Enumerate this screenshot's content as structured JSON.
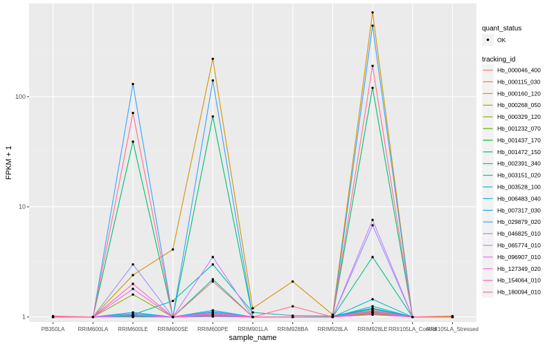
{
  "chart_data": {
    "type": "line",
    "xlabel": "sample_name",
    "ylabel": "FPKM + 1",
    "y_scale": "log10",
    "ylim": [
      0.9,
      700
    ],
    "y_ticks": [
      {
        "value": 1,
        "label": "1"
      },
      {
        "value": 10,
        "label": "10"
      },
      {
        "value": 100,
        "label": "100"
      }
    ],
    "categories": [
      "PB350LA",
      "RRIM600LA",
      "RRIM600LE",
      "RRIM600SE",
      "RRIM600PE",
      "RRIM901LA",
      "RRIM928BA",
      "RRIM928LA",
      "RRIM928LE",
      "RRII105LA_Control",
      "RRII105LA_Stressed"
    ],
    "grid": true,
    "legend_position": "right",
    "point_legend": {
      "title": "quant_status",
      "label": "OK"
    },
    "line_legend_title": "tracking_id",
    "series": [
      {
        "name": "Hb_000046_400",
        "color": "#F8766D",
        "values": [
          1.0,
          1.0,
          1.03,
          1.0,
          1.02,
          1.0,
          1.0,
          1.0,
          1.15,
          1.0,
          1.0
        ]
      },
      {
        "name": "Hb_000115_030",
        "color": "#E7851E",
        "values": [
          1.0,
          1.0,
          1.01,
          1.0,
          1.01,
          1.0,
          1.0,
          1.0,
          1.08,
          1.0,
          1.0
        ]
      },
      {
        "name": "Hb_000160_120",
        "color": "#D09400",
        "values": [
          1.0,
          1.0,
          2.4,
          4.1,
          220,
          1.2,
          2.1,
          1.05,
          580,
          1.0,
          1.02
        ]
      },
      {
        "name": "Hb_000268_050",
        "color": "#B2A100",
        "values": [
          1.0,
          1.0,
          1.02,
          1.0,
          1.02,
          1.0,
          1.0,
          1.0,
          1.1,
          1.0,
          1.0
        ]
      },
      {
        "name": "Hb_000329_120",
        "color": "#8BAB00",
        "values": [
          1.0,
          1.0,
          1.6,
          1.0,
          1.1,
          1.0,
          1.0,
          1.0,
          1.2,
          1.0,
          1.0
        ]
      },
      {
        "name": "Hb_001232_070",
        "color": "#55B400",
        "values": [
          1.0,
          1.0,
          1.04,
          1.0,
          1.05,
          1.0,
          1.0,
          1.0,
          1.12,
          1.0,
          1.0
        ]
      },
      {
        "name": "Hb_001437_170",
        "color": "#00BA38",
        "values": [
          1.0,
          1.0,
          1.02,
          1.0,
          1.02,
          1.0,
          1.0,
          1.0,
          1.06,
          1.0,
          1.0
        ]
      },
      {
        "name": "Hb_001472_150",
        "color": "#00BE6C",
        "values": [
          1.0,
          1.0,
          39,
          1.0,
          66,
          1.0,
          1.0,
          1.0,
          120,
          1.0,
          1.0
        ]
      },
      {
        "name": "Hb_002391_340",
        "color": "#00C08E",
        "values": [
          1.0,
          1.0,
          1.03,
          1.0,
          2.2,
          1.0,
          1.0,
          1.0,
          3.5,
          1.0,
          1.0
        ]
      },
      {
        "name": "Hb_003151_020",
        "color": "#00C0AB",
        "values": [
          1.0,
          1.0,
          1.05,
          1.4,
          3.0,
          1.1,
          1.03,
          1.02,
          1.2,
          1.0,
          1.0
        ]
      },
      {
        "name": "Hb_003528_100",
        "color": "#00BDC4",
        "values": [
          1.0,
          1.0,
          1.04,
          1.0,
          1.03,
          1.0,
          1.0,
          1.0,
          1.45,
          1.0,
          1.0
        ]
      },
      {
        "name": "Hb_006483_040",
        "color": "#00B7DA",
        "values": [
          1.0,
          1.0,
          1.1,
          1.0,
          1.15,
          1.0,
          1.0,
          1.0,
          1.25,
          1.0,
          1.0
        ]
      },
      {
        "name": "Hb_007317_030",
        "color": "#00ADEE",
        "values": [
          1.0,
          1.0,
          1.07,
          1.0,
          1.12,
          1.0,
          1.0,
          1.0,
          1.18,
          1.0,
          1.0
        ]
      },
      {
        "name": "Hb_029879_020",
        "color": "#35A2FF",
        "values": [
          1.0,
          1.0,
          130,
          1.0,
          140,
          1.0,
          1.0,
          1.0,
          440,
          1.0,
          1.0
        ]
      },
      {
        "name": "Hb_046825_010",
        "color": "#8F91FF",
        "values": [
          1.0,
          1.0,
          3.0,
          1.0,
          1.1,
          1.0,
          1.0,
          1.0,
          6.8,
          1.0,
          1.0
        ]
      },
      {
        "name": "Hb_065774_010",
        "color": "#C77CFF",
        "values": [
          1.0,
          1.0,
          1.05,
          1.0,
          3.5,
          1.0,
          1.0,
          1.0,
          7.6,
          1.0,
          1.0
        ]
      },
      {
        "name": "Hb_096907_010",
        "color": "#E96AF3",
        "values": [
          1.0,
          1.0,
          1.8,
          1.0,
          1.06,
          1.0,
          1.0,
          1.0,
          1.13,
          1.0,
          1.0
        ]
      },
      {
        "name": "Hb_127349_020",
        "color": "#FA62DB",
        "values": [
          1.0,
          1.0,
          1.0,
          1.0,
          1.01,
          1.0,
          1.0,
          1.0,
          1.05,
          1.0,
          1.0
        ]
      },
      {
        "name": "Hb_154064_010",
        "color": "#FF64B0",
        "values": [
          1.0,
          1.0,
          2.0,
          1.0,
          1.08,
          1.0,
          1.0,
          1.0,
          1.1,
          1.0,
          1.0
        ]
      },
      {
        "name": "Hb_180094_010",
        "color": "#FF6C91",
        "values": [
          1.02,
          1.0,
          71,
          1.0,
          2.1,
          1.0,
          1.25,
          1.0,
          190,
          1.0,
          1.0
        ]
      }
    ]
  },
  "colors": {
    "panel": "#EBEBEB",
    "grid_major": "#FFFFFF",
    "grid_minor": "#F2F2F2",
    "axis_text": "#4D4D4D",
    "point": "#000000"
  }
}
